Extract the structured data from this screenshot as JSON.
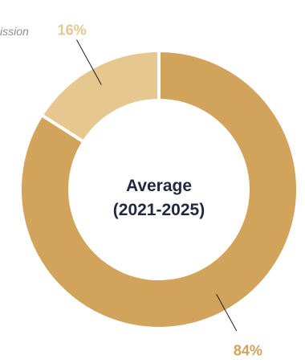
{
  "chart_data": {
    "type": "pie",
    "subtitle_fragment": "ission",
    "center_label_line1": "Average",
    "center_label_line2": "(2021-2025)",
    "slices": [
      {
        "value": 84,
        "label": "84%",
        "color": "#D2A35A",
        "label_color": "#D2A35A"
      },
      {
        "value": 16,
        "label": "16%",
        "color": "#E6C78F",
        "label_color": "#E6C78F"
      }
    ],
    "colors": {
      "center_text": "#1F2A3C",
      "subtitle_text": "#8C8C8C",
      "separator": "#FFFFFF",
      "leader_line": "#1F1F1F"
    }
  }
}
